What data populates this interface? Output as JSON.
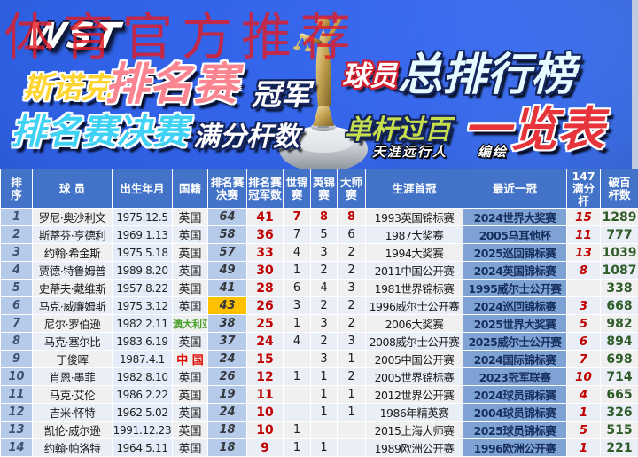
{
  "banner": {
    "watermark": "体育官方推荐",
    "logo": "WST",
    "title_snooker": "斯诺克",
    "title_ranking": "排名赛",
    "title_champion": "冠军",
    "title_player": "球员",
    "title_overall": "总排行榜",
    "title_finals": "排名赛决赛",
    "title_maxbreaks": "满分杆数",
    "title_century": "单杆过百",
    "title_list": "一览表",
    "credit": "天涯远行人　　编绘",
    "trophy_icon": "uk-championship-trophy"
  },
  "chart_data": {
    "type": "table",
    "title": "斯诺克排名赛冠军 球员总排行榜 · 排名赛决赛 满分杆数 单杆过百一览表",
    "columns": [
      "排\n序",
      "球  员",
      "出生年月",
      "国籍",
      "排名赛\n决赛",
      "排名赛\n冠军数",
      "世锦\n赛",
      "英锦\n赛",
      "大师\n赛",
      "生涯首冠",
      "最近一冠",
      "147\n满分杆",
      "破百\n杆数"
    ],
    "rows": [
      [
        "1",
        "罗尼·奥沙利文",
        "1975.12.5",
        "英国",
        "64",
        "41",
        "7",
        "8",
        "8",
        "1993英国锦标赛",
        "2024世界大奖赛",
        "15",
        "1289"
      ],
      [
        "2",
        "斯蒂芬·亨德利",
        "1969.1.13",
        "英国",
        "58",
        "36",
        "7",
        "5",
        "6",
        "1987大奖赛",
        "2005马耳他杯",
        "11",
        "777"
      ],
      [
        "3",
        "约翰·希金斯",
        "1975.5.18",
        "英国",
        "57",
        "33",
        "4",
        "3",
        "2",
        "1994大奖赛",
        "2025巡回锦标赛",
        "13",
        "1039"
      ],
      [
        "4",
        "贾德·特鲁姆普",
        "1989.8.20",
        "英国",
        "49",
        "30",
        "1",
        "2",
        "2",
        "2011中国公开赛",
        "2024英国锦标赛",
        "8",
        "1087"
      ],
      [
        "5",
        "史蒂夫·戴维斯",
        "1957.8.22",
        "英国",
        "41",
        "28",
        "6",
        "4",
        "3",
        "1981世界锦标赛",
        "1995威尔士公开赛",
        "",
        "338"
      ],
      [
        "6",
        "马克·威廉姆斯",
        "1975.3.12",
        "英国",
        "43",
        "26",
        "3",
        "2",
        "2",
        "1996威尔士公开赛",
        "2024巡回锦标赛",
        "3",
        "668"
      ],
      [
        "7",
        "尼尔·罗伯逊",
        "1982.2.11",
        "澳大利亚",
        "38",
        "25",
        "1",
        "3",
        "2",
        "2006大奖赛",
        "2025世界大奖赛",
        "5",
        "982"
      ],
      [
        "8",
        "马克·塞尔比",
        "1983.6.19",
        "英国",
        "37",
        "24",
        "4",
        "2",
        "3",
        "2008威尔士公开赛",
        "2025威尔士公开赛",
        "6",
        "894"
      ],
      [
        "9",
        "丁俊晖",
        "1987.4.1",
        "中 国",
        "24",
        "15",
        "",
        "3",
        "1",
        "2005中国公开赛",
        "2024国际锦标赛",
        "7",
        "698"
      ],
      [
        "10",
        "肖恩·墨菲",
        "1982.8.10",
        "英国",
        "26",
        "12",
        "1",
        "1",
        "2",
        "2005世界锦标赛",
        "2023冠军联赛",
        "10",
        "714"
      ],
      [
        "11",
        "马克·艾伦",
        "1986.2.22",
        "英国",
        "19",
        "11",
        "",
        "1",
        "1",
        "2012世界公开赛",
        "2024球员锦标赛",
        "4",
        "665"
      ],
      [
        "12",
        "吉米·怀特",
        "1962.5.02",
        "英国",
        "24",
        "10",
        "",
        "1",
        "1",
        "1986年精英赛",
        "2004球员锦标赛",
        "1",
        "326"
      ],
      [
        "13",
        "凯伦·威尔逊",
        "1991.12.23",
        "英国",
        "18",
        "10",
        "1",
        "",
        "",
        "2015上海大师赛",
        "2025球员锦标赛",
        "5",
        "515"
      ],
      [
        "14",
        "约翰·帕洛特",
        "1964.5.11",
        "英国",
        "18",
        "9",
        "1",
        "1",
        "",
        "1989欧洲公开赛",
        "1996欧洲公开赛",
        "1",
        "221"
      ]
    ]
  },
  "styles": {
    "header_bg": "#4273c8",
    "accent_orange": "#ffc000",
    "red_number": "#c00000",
    "green_number": "#2f5c28",
    "nationality_colors": {
      "中 国": "#e10600",
      "澳大利亚": "#4aa02c"
    },
    "highlight_cell": {
      "row": 5,
      "col": 4
    },
    "first_row_red_cols": [
      6,
      7,
      8
    ]
  }
}
